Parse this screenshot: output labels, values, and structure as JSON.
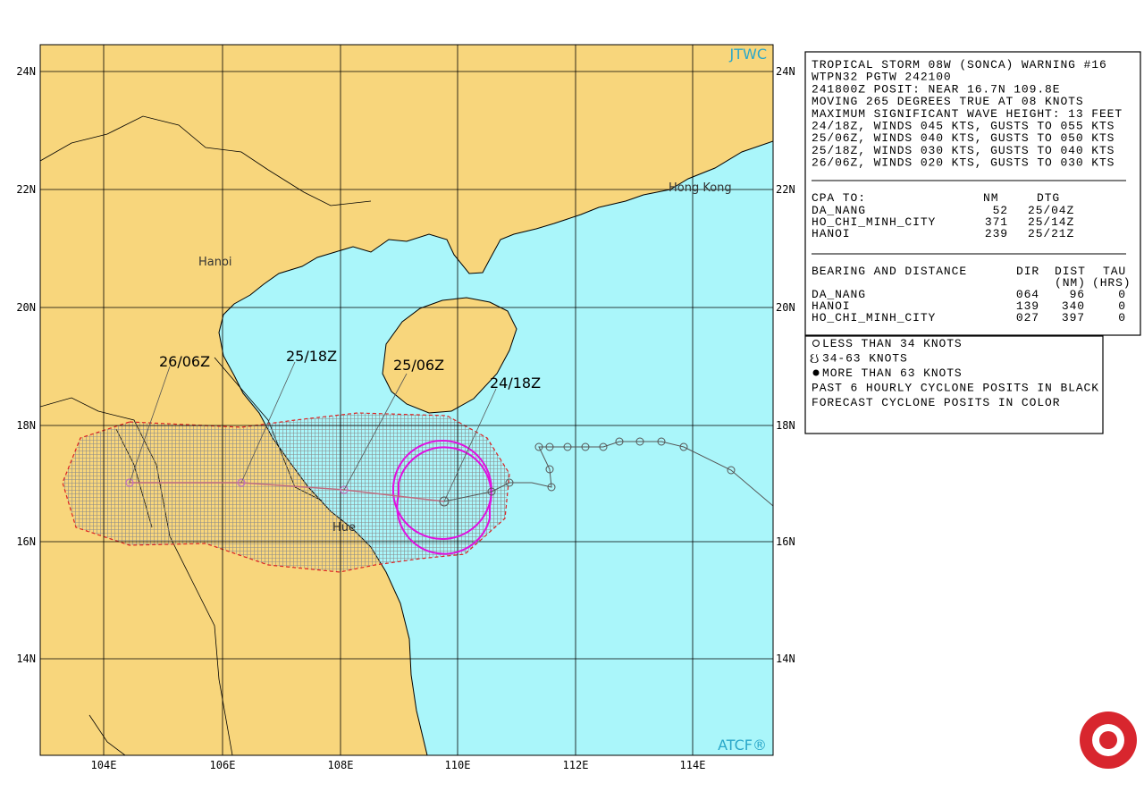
{
  "map": {
    "corner_labels": {
      "top": "JTWC",
      "bottom": "ATCF®"
    },
    "lat_labels": [
      "24N",
      "22N",
      "20N",
      "18N",
      "16N",
      "14N"
    ],
    "lon_labels": [
      "104E",
      "106E",
      "108E",
      "110E",
      "112E",
      "114E"
    ],
    "places": [
      "Hanoi",
      "Hue",
      "Hong Kong"
    ],
    "forecast_labels": [
      "26/06Z",
      "25/18Z",
      "25/06Z",
      "24/18Z"
    ]
  },
  "warning": {
    "lines": [
      "TROPICAL STORM 08W (SONCA) WARNING #16",
      "WTPN32 PGTW 242100",
      "241800Z POSIT: NEAR 16.7N 109.8E",
      "MOVING 265 DEGREES TRUE AT 08 KNOTS",
      "MAXIMUM SIGNIFICANT WAVE HEIGHT: 13 FEET",
      "24/18Z, WINDS 045 KTS, GUSTS TO 055 KTS",
      "25/06Z, WINDS 040 KTS, GUSTS TO 050 KTS",
      "25/18Z, WINDS 030 KTS, GUSTS TO 040 KTS",
      "26/06Z, WINDS 020 KTS, GUSTS TO 030 KTS"
    ],
    "cpa": {
      "header": [
        "CPA TO:",
        "NM",
        "DTG"
      ],
      "rows": [
        [
          "DA_NANG",
          "52",
          "25/04Z"
        ],
        [
          "HO_CHI_MINH_CITY",
          "371",
          "25/14Z"
        ],
        [
          "HANOI",
          "239",
          "25/21Z"
        ]
      ]
    },
    "bearing": {
      "header": [
        "BEARING AND DISTANCE",
        "DIR",
        "DIST",
        "TAU"
      ],
      "units": [
        "(NM)",
        "(HRS)"
      ],
      "rows": [
        [
          "DA_NANG",
          "064",
          "96",
          "0"
        ],
        [
          "HANOI",
          "139",
          "340",
          "0"
        ],
        [
          "HO_CHI_MINH_CITY",
          "027",
          "397",
          "0"
        ]
      ]
    }
  },
  "legend": {
    "lines": [
      "LESS THAN 34 KNOTS",
      "34-63 KNOTS",
      "MORE THAN 63 KNOTS",
      "PAST 6 HOURLY CYCLONE POSITS IN BLACK",
      "FORECAST CYCLONE POSITS IN COLOR"
    ]
  }
}
